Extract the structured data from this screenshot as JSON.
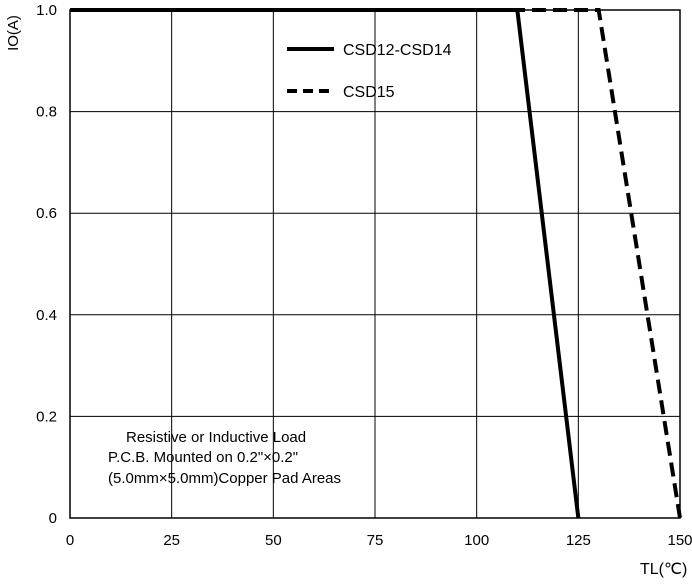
{
  "chart_data": {
    "type": "line",
    "xlabel": "TL(℃)",
    "ylabel": "IO(A)",
    "xlim": [
      0,
      150
    ],
    "ylim": [
      0,
      1.0
    ],
    "x_ticks": [
      0,
      25,
      50,
      75,
      100,
      125,
      150
    ],
    "y_ticks": [
      0,
      0.2,
      0.4,
      0.6,
      0.8,
      1.0
    ],
    "x_tick_labels": [
      "0",
      "25",
      "50",
      "75",
      "100",
      "125",
      "150"
    ],
    "y_tick_labels": [
      "0",
      "0.2",
      "0.4",
      "0.6",
      "0.8",
      "1.0"
    ],
    "grid": true,
    "legend_position": "top-right",
    "series": [
      {
        "name": "CSD12-CSD14",
        "style": "solid",
        "color": "#000000",
        "x": [
          0,
          110,
          125
        ],
        "y": [
          1.0,
          1.0,
          0
        ]
      },
      {
        "name": "CSD15",
        "style": "dashed",
        "color": "#000000",
        "x": [
          0,
          130,
          150
        ],
        "y": [
          1.0,
          1.0,
          0
        ]
      }
    ],
    "annotation": [
      "Resistive or Inductive Load",
      "P.C.B. Mounted on 0.2\"×0.2\"",
      "(5.0mm×5.0mm)Copper Pad Areas"
    ]
  }
}
